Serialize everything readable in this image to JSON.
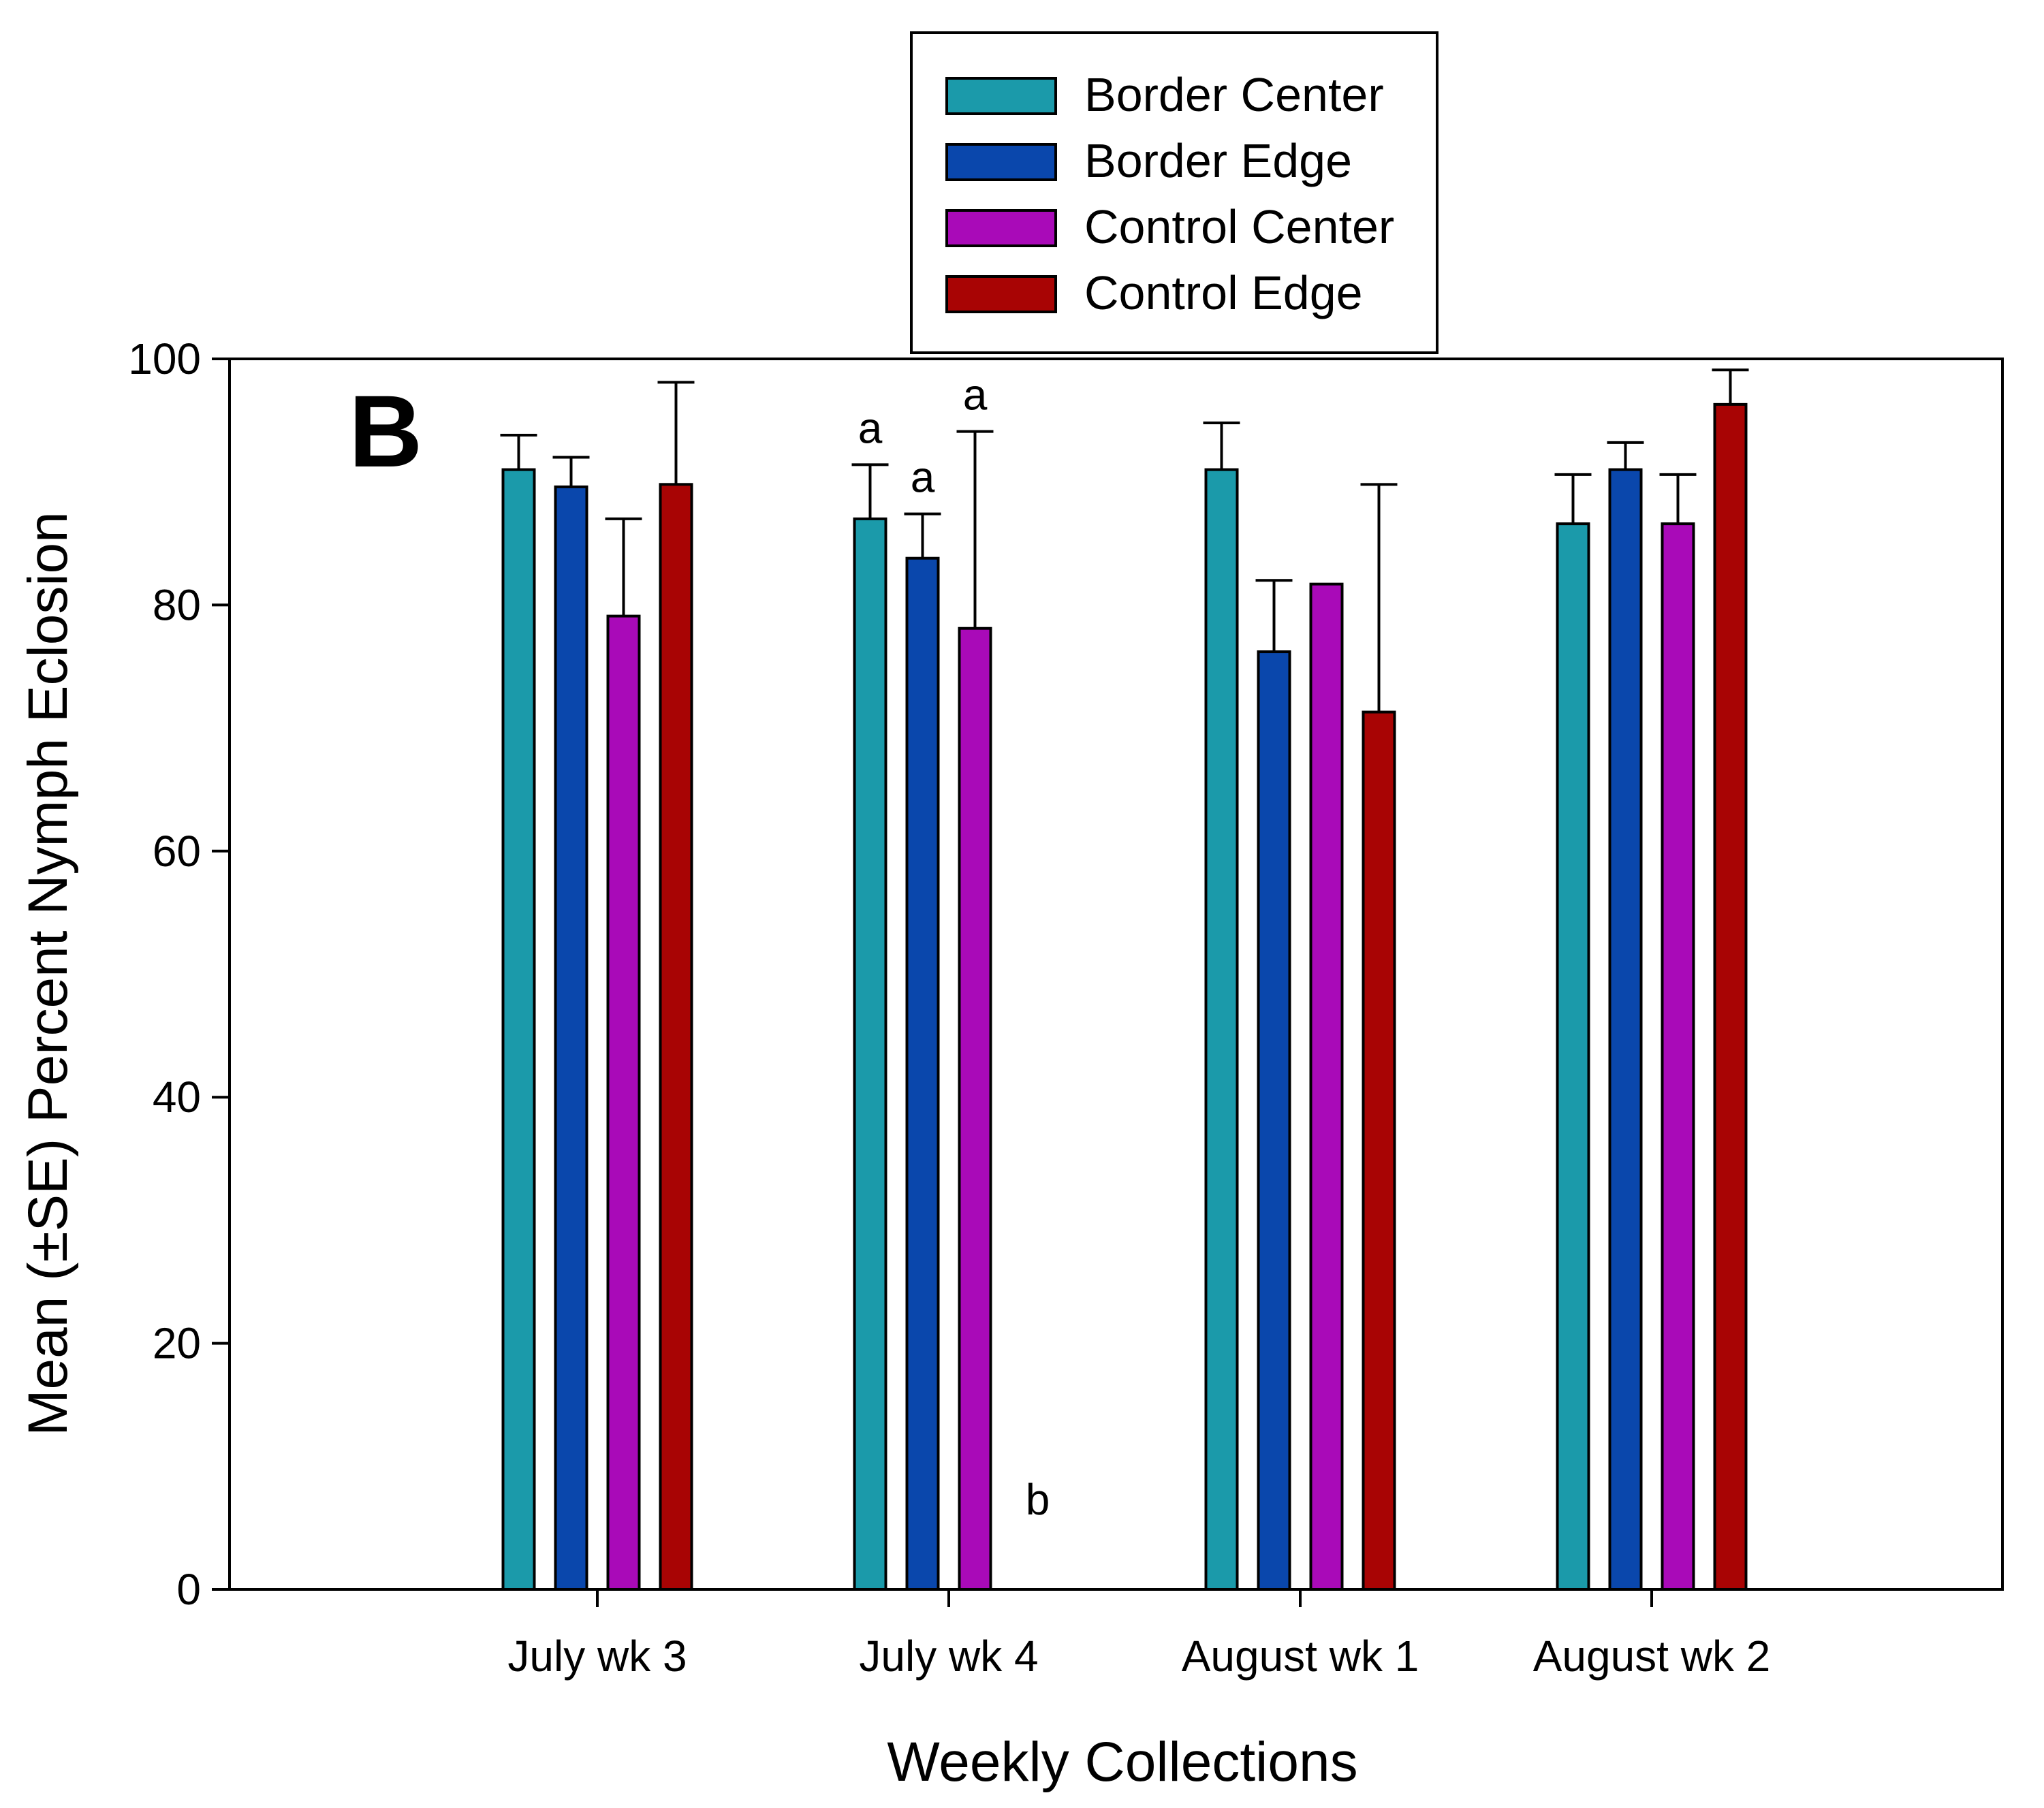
{
  "chart_data": {
    "type": "bar",
    "panel_label": "B",
    "title": "",
    "xlabel": "Weekly Collections",
    "ylabel": "Mean (±SE) Percent Nymph Eclosion",
    "ylim": [
      0,
      100
    ],
    "yticks": [
      0,
      20,
      40,
      60,
      80,
      100
    ],
    "categories": [
      "July wk 3",
      "July wk 4",
      "August wk 1",
      "August wk 2"
    ],
    "series": [
      {
        "name": "Border Center",
        "color": "#1B9AAA",
        "values": [
          91,
          87,
          91,
          86.6
        ],
        "errors": [
          2.8,
          4.4,
          3.8,
          4.0
        ]
      },
      {
        "name": "Border Edge",
        "color": "#0A47AC",
        "values": [
          89.6,
          83.8,
          76.2,
          91
        ],
        "errors": [
          2.4,
          3.6,
          5.8,
          2.2
        ]
      },
      {
        "name": "Control Center",
        "color": "#A90AB8",
        "values": [
          79.1,
          78.1,
          81.7,
          86.6
        ],
        "errors": [
          7.9,
          16.0,
          0,
          4.0
        ]
      },
      {
        "name": "Control Edge",
        "color": "#A80404",
        "values": [
          89.8,
          0,
          71.3,
          96.3
        ],
        "errors": [
          8.3,
          0,
          18.5,
          2.8
        ]
      }
    ],
    "significance_letters": [
      {
        "category": "July wk 4",
        "series": "Border Center",
        "letter": "a"
      },
      {
        "category": "July wk 4",
        "series": "Border Edge",
        "letter": "a"
      },
      {
        "category": "July wk 4",
        "series": "Control Center",
        "letter": "a"
      },
      {
        "category": "July wk 4",
        "series": "Control Edge",
        "letter": "b"
      }
    ],
    "legend": {
      "position": "top-center",
      "boxed": true
    },
    "grid": false
  }
}
